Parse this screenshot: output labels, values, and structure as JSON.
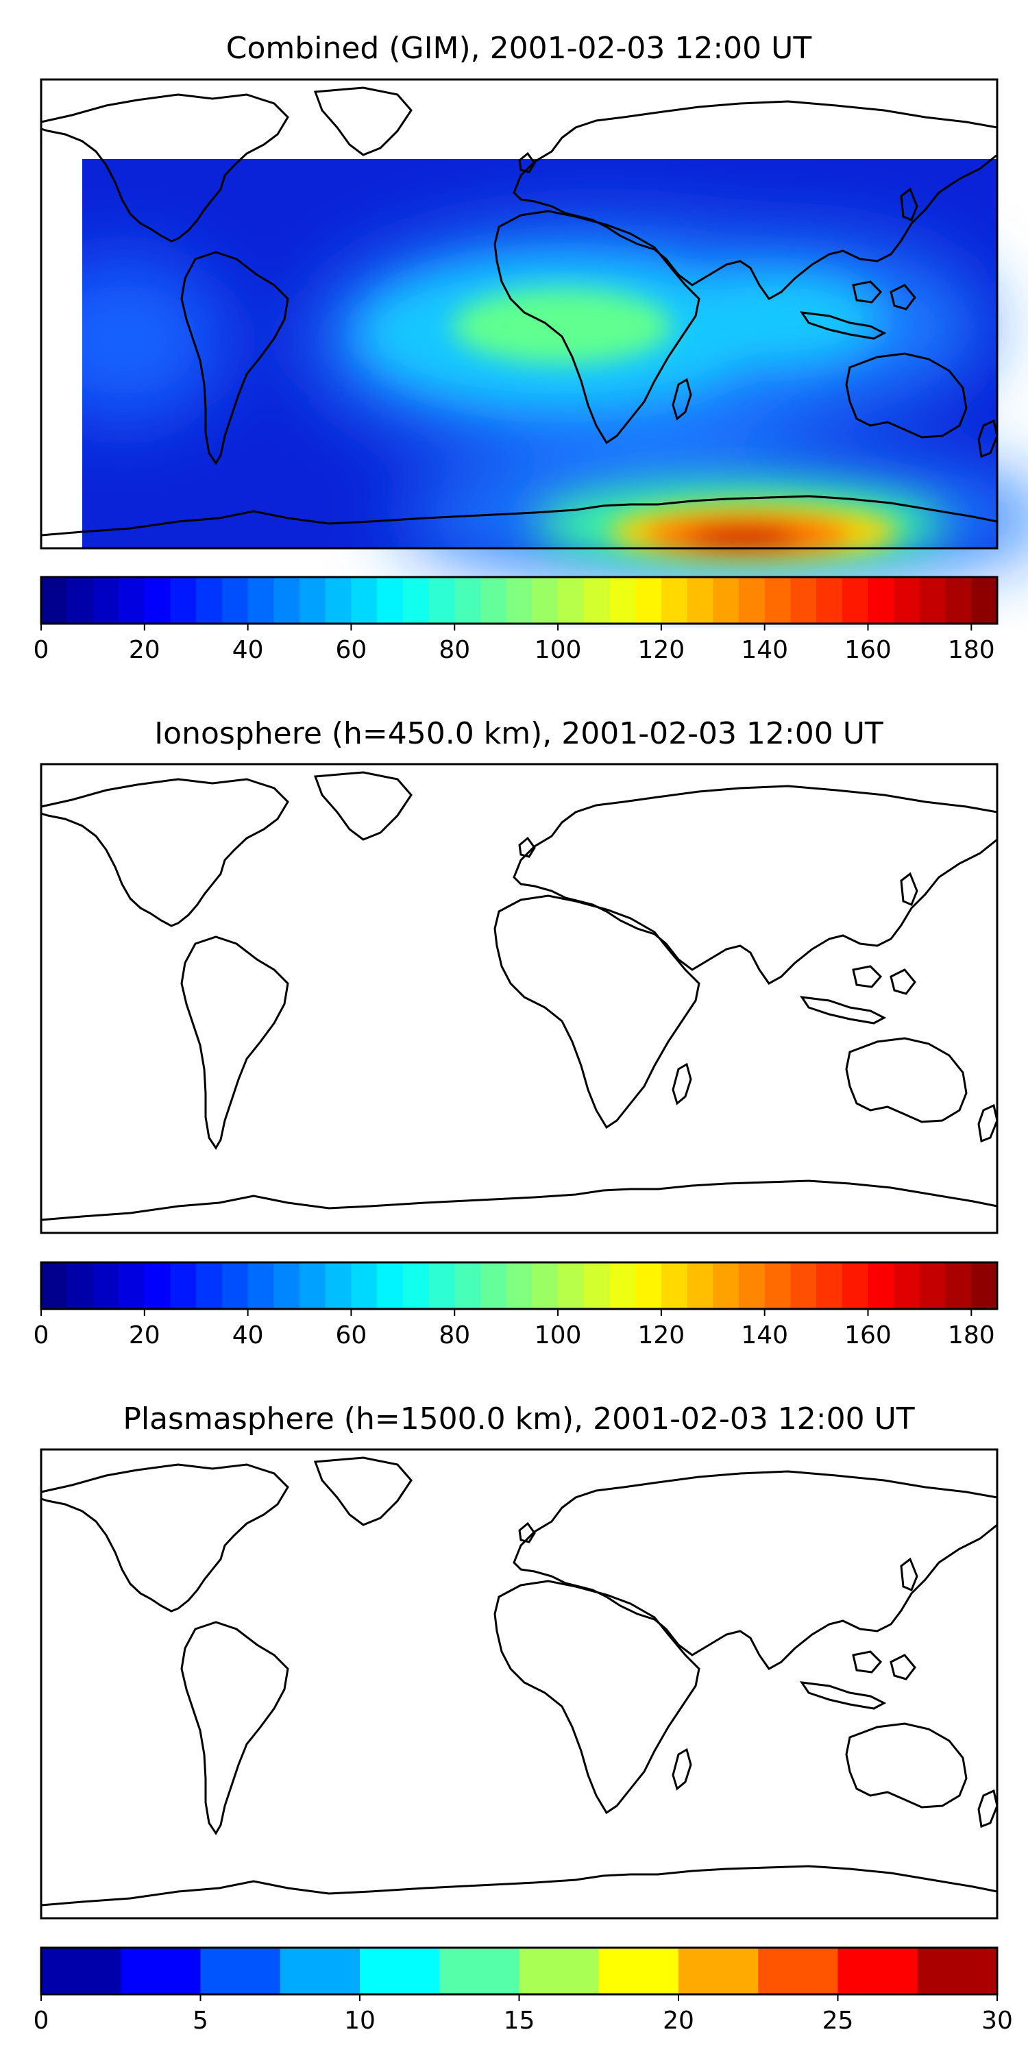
{
  "panels": [
    {
      "id": "combined",
      "title": "Combined (GIM), 2001-02-03 12:00 UT",
      "colorbar": {
        "vmin": 0,
        "vmax": 185,
        "step": 5,
        "ticks": [
          0,
          20,
          40,
          60,
          80,
          100,
          120,
          140,
          160,
          180
        ],
        "tick_labels": [
          "0",
          "20",
          "40",
          "60",
          "80",
          "100",
          "120",
          "140",
          "160",
          "180"
        ]
      }
    },
    {
      "id": "ionosphere",
      "title": "Ionosphere  (h=450.0 km), 2001-02-03 12:00 UT",
      "colorbar": {
        "vmin": 0,
        "vmax": 185,
        "step": 5,
        "ticks": [
          0,
          20,
          40,
          60,
          80,
          100,
          120,
          140,
          160,
          180
        ],
        "tick_labels": [
          "0",
          "20",
          "40",
          "60",
          "80",
          "100",
          "120",
          "140",
          "160",
          "180"
        ]
      }
    },
    {
      "id": "plasmasphere",
      "title": "Plasmasphere (h=1500.0 km), 2001-02-03 12:00 UT",
      "colorbar": {
        "vmin": 0,
        "vmax": 30,
        "step": 2.5,
        "ticks": [
          0,
          5,
          10,
          15,
          20,
          25,
          30
        ],
        "tick_labels": [
          "0",
          "5",
          "10",
          "15",
          "20",
          "25",
          "30"
        ]
      }
    }
  ],
  "map_extent": {
    "lon_range": [
      -180,
      180
    ],
    "lat_range": [
      -90,
      90
    ]
  },
  "colormap": "jet",
  "colors": {
    "coastline": "#000000",
    "frame": "#000000"
  }
}
